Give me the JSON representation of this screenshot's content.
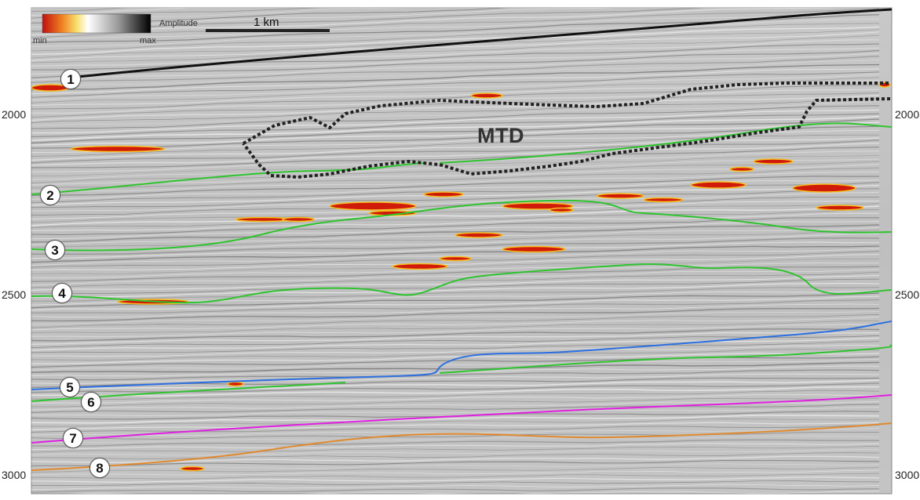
{
  "legend": {
    "title": "Amplitude",
    "min_label": "min",
    "max_label": "max"
  },
  "scale_bar": {
    "label": "1 km"
  },
  "depth_axis": {
    "ticks": [
      "2000",
      "2500",
      "3000"
    ]
  },
  "feature_label": "MTD",
  "horizons": [
    {
      "id": "1",
      "color": "#111111"
    },
    {
      "id": "2",
      "color": "#2fc42f"
    },
    {
      "id": "3",
      "color": "#2fc42f"
    },
    {
      "id": "4",
      "color": "#2fc42f"
    },
    {
      "id": "5",
      "color": "#2b6fe0"
    },
    {
      "id": "6",
      "color": "#2fc42f"
    },
    {
      "id": "7",
      "color": "#e020e0"
    },
    {
      "id": "8",
      "color": "#e08a30"
    }
  ],
  "colors": {
    "mtd_outline": "#222222",
    "anomaly": "#d01a0a",
    "anomaly_edge": "#f5c020",
    "background": "#bdbdbd"
  }
}
